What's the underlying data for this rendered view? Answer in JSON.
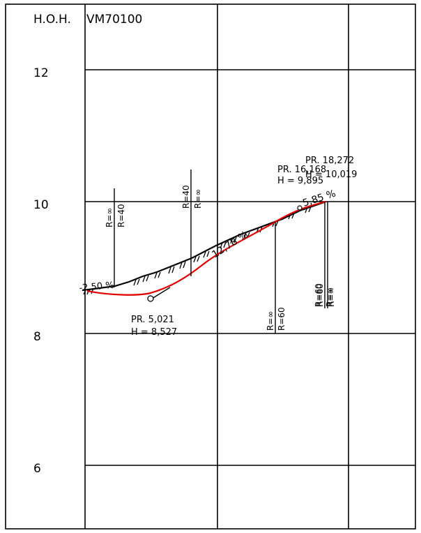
{
  "header": {
    "axis_label": "H.O.H.",
    "drawing_id": "VM70100"
  },
  "axis": {
    "elevation_ticks": [
      "12",
      "10",
      "8",
      "6"
    ]
  },
  "profile": {
    "grade_left": "-2,50 %",
    "grade_middle": "12,78 %",
    "grade_right": "5,85 %",
    "tangent_point_1": "PR. 16,168",
    "tangent_point_1_height": "H = 9,895",
    "tangent_point_2": "PR. 18,272",
    "tangent_point_2_height": "H = 10,019",
    "low_point": "PR. 5,021",
    "low_point_height": "H = 8,527"
  },
  "curve_marks": {
    "pair_1_top": "R=∞",
    "pair_1_bottom": "R=40",
    "pair_2_top": "R=40",
    "pair_2_bottom": "R=∞",
    "pair_3_top": "R=∞",
    "pair_3_bottom": "R=60",
    "pair_4_top": "R=60",
    "pair_4_bottom": "R=∞",
    "pair_5_top": "R=60",
    "pair_5_bottom": "R=∞"
  },
  "colors": {
    "line": "#000000",
    "design_profile": "#e00000",
    "background": "#ffffff"
  }
}
